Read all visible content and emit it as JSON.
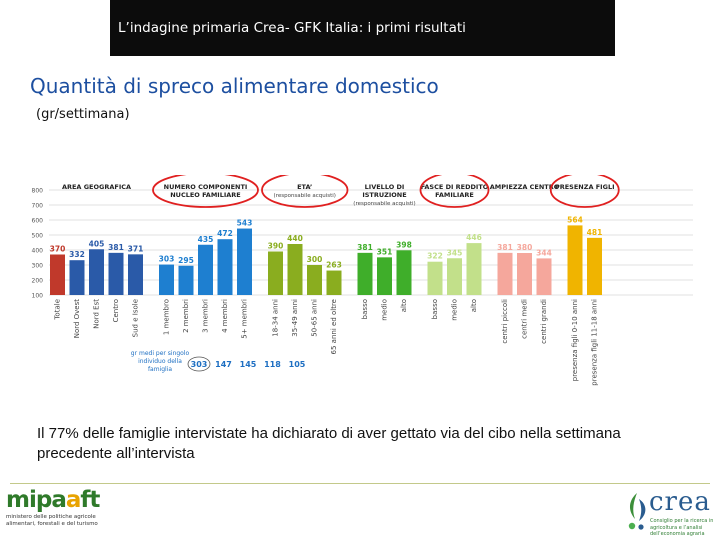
{
  "header": {
    "title": "L’indagine primaria Crea- GFK Italia: i primi risultati"
  },
  "page": {
    "title": "Quantità di spreco alimentare domestico",
    "subtitle": "(gr/settimana)",
    "caption": "Il 77% delle famiglie intervistate ha dichiarato di aver gettato via del cibo nella settimana precedente all’intervista"
  },
  "chart_data": {
    "type": "bar",
    "ylim": [
      100,
      800
    ],
    "yticks": [
      "800",
      "700",
      "600",
      "500",
      "400",
      "300",
      "200",
      "100"
    ],
    "grid": true,
    "groups": [
      {
        "label": "AREA GEOGRAFICA",
        "circled": false,
        "color": "#2a5aa8",
        "bars": [
          {
            "category": "Totale",
            "value": 370,
            "color": "#c0392b"
          },
          {
            "category": "Nord Ovest",
            "value": 332
          },
          {
            "category": "Nord Est",
            "value": 405
          },
          {
            "category": "Centro",
            "value": 381
          },
          {
            "category": "Sud e Isole",
            "value": 371
          }
        ]
      },
      {
        "label": "NUMERO COMPONENTI NUCLEO FAMILIARE",
        "circled": true,
        "color": "#1e7fd0",
        "bars": [
          {
            "category": "1 membro",
            "value": 303
          },
          {
            "category": "2 membri",
            "value": 295
          },
          {
            "category": "3 membri",
            "value": 435
          },
          {
            "category": "4 membri",
            "value": 472
          },
          {
            "category": "5+ membri",
            "value": 543
          }
        ]
      },
      {
        "label": "ETA’",
        "sublabel": "(responsabile acquisti)",
        "circled": true,
        "color": "#8aad1f",
        "bars": [
          {
            "category": "18-34 anni",
            "value": 390
          },
          {
            "category": "35-49 anni",
            "value": 440
          },
          {
            "category": "50-65 anni",
            "value": 300
          },
          {
            "category": "65 anni ed oltre",
            "value": 263
          }
        ]
      },
      {
        "label": "LIVELLO DI ISTRUZIONE",
        "sublabel": "(responsabile acquisti)",
        "circled": false,
        "color": "#3fae2a",
        "bars": [
          {
            "category": "basso",
            "value": 381
          },
          {
            "category": "medio",
            "value": 351
          },
          {
            "category": "alto",
            "value": 398
          }
        ]
      },
      {
        "label": "FASCE DI REDDITO FAMILIARE",
        "circled": true,
        "color": "#c2e08a",
        "bars": [
          {
            "category": "basso",
            "value": 322
          },
          {
            "category": "medio",
            "value": 345
          },
          {
            "category": "alto",
            "value": 446
          }
        ]
      },
      {
        "label": "AMPIEZZA CENTRO",
        "circled": false,
        "color": "#f5a79c",
        "bars": [
          {
            "category": "centri piccoli",
            "value": 381
          },
          {
            "category": "centri medi",
            "value": 380
          },
          {
            "category": "centri grandi",
            "value": 344
          }
        ]
      },
      {
        "label": "PRESENZA FIGLI",
        "circled": true,
        "color": "#f0b400",
        "bars": [
          {
            "category": "presenza figli 0-10 anni",
            "value": 564
          },
          {
            "category": "presenza figli 11-18 anni",
            "value": 481
          }
        ]
      }
    ],
    "per_capita": {
      "label": "gr medi per singolo individuo della famiglia",
      "values": [
        "303",
        "147",
        "145",
        "118",
        "105"
      ]
    }
  },
  "logos": {
    "left": {
      "word_a": "mipa",
      "word_b": "a",
      "word_c": "ft",
      "sub1": "ministero delle politiche agricole",
      "sub2": "alimentari, forestali e del turismo"
    },
    "right": {
      "word": "crea",
      "sub": "Consiglio per la ricerca in agricoltura e l’analisi dell’economia agraria"
    }
  },
  "colors": {
    "title": "#1d4fa0",
    "header_bg": "#0c0c0c",
    "circle": "#e02020",
    "total_bar": "#c0392b"
  }
}
